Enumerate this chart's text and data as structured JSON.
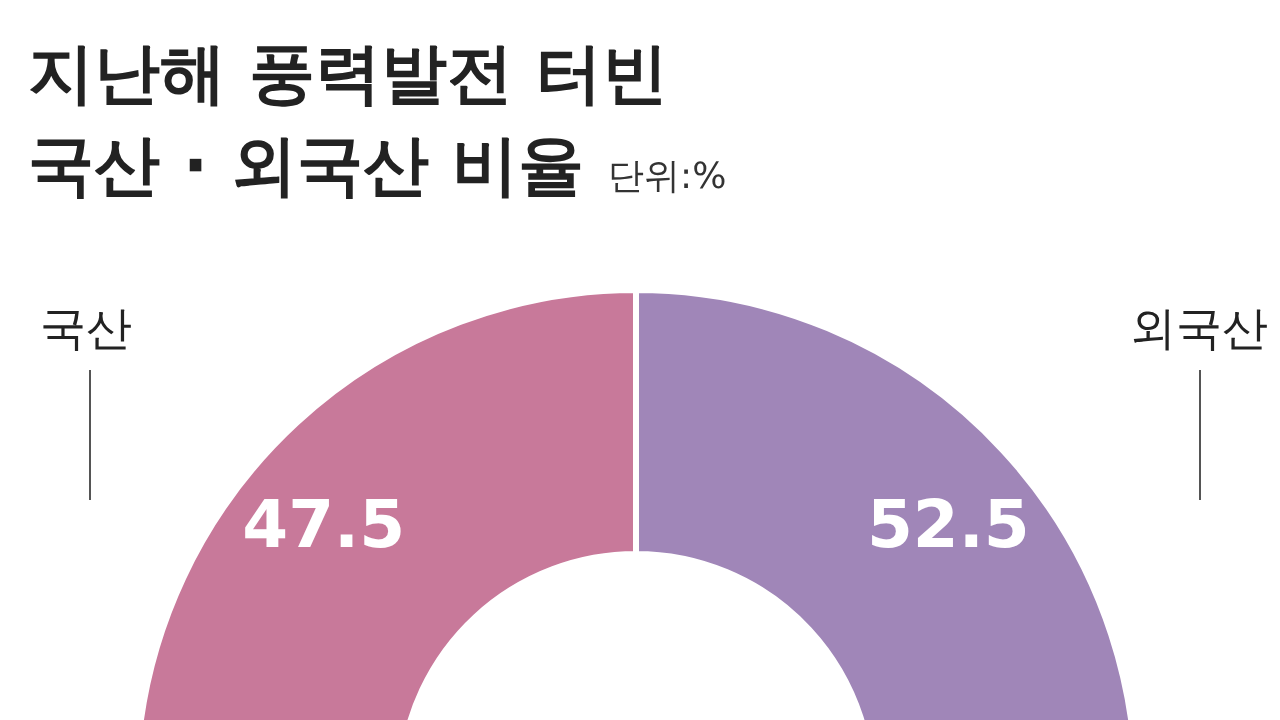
{
  "chart_data": {
    "type": "donut",
    "title": "지난해 풍력발전 터빈\n국산 · 외국산 비율",
    "subtitle": "단위:%",
    "categories": [
      "국산",
      "외국산"
    ],
    "values": [
      47.5,
      52.5
    ],
    "colors": [
      "#c8799a",
      "#a086b8"
    ],
    "data_labels": true
  }
}
